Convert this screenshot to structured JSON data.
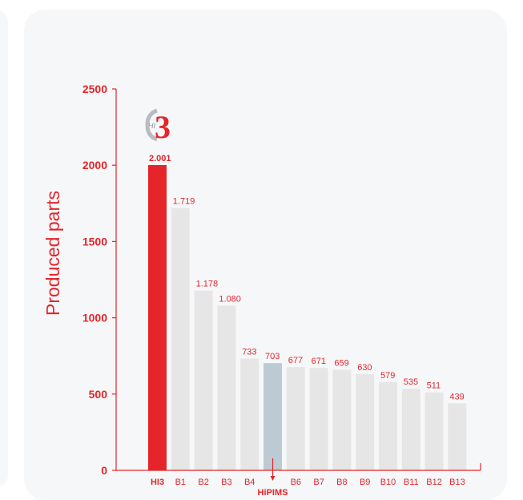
{
  "colors": {
    "accent": "#e5252a",
    "bar_default": "#e6e6e6",
    "bar_highlight": "#e5252a",
    "bar_special": "#bccbd3",
    "card_bg": "#f6f7f9"
  },
  "logo": {
    "small_text": "HI",
    "big_text": "3"
  },
  "chart_data": {
    "type": "bar",
    "ylabel": "Produced parts",
    "xlabel": "",
    "title": "",
    "ylim": [
      0,
      2500
    ],
    "yticks": [
      "0",
      "500",
      "1000",
      "1500",
      "2000",
      "2500"
    ],
    "categories": [
      "HI3",
      "B1",
      "B2",
      "B3",
      "B4",
      "HiPIMS",
      "B6",
      "B7",
      "B8",
      "B9",
      "B10",
      "B11",
      "B12",
      "B13"
    ],
    "values": [
      2001,
      1719,
      1178,
      1080,
      733,
      703,
      677,
      671,
      659,
      630,
      579,
      535,
      511,
      439
    ],
    "value_labels": [
      "2.001",
      "1.719",
      "1.178",
      "1.080",
      "733",
      "703",
      "677",
      "671",
      "659",
      "630",
      "579",
      "535",
      "511",
      "439"
    ],
    "highlight": "HI3",
    "special": "HiPIMS",
    "grid": false,
    "legend": "none"
  }
}
